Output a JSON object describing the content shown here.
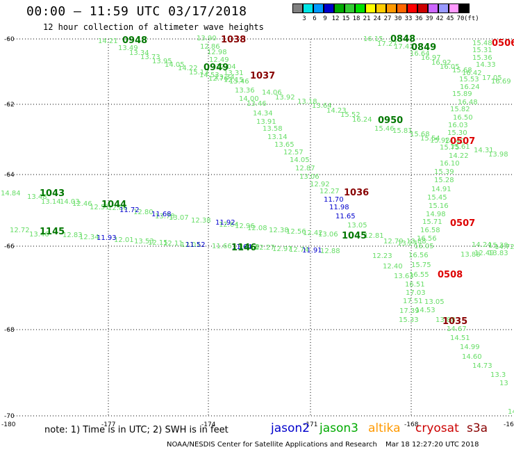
{
  "header": {
    "title": "00:00 – 11:59 UTC 03/17/2018",
    "subtitle": "12 hour collection of altimeter wave heights"
  },
  "color_scale": {
    "labels": [
      "3",
      "6",
      "9",
      "12",
      "15",
      "18",
      "21",
      "24",
      "27",
      "30",
      "33",
      "36",
      "39",
      "42",
      "45",
      "70",
      "(ft)"
    ],
    "colors": [
      "#808080",
      "#00e5e5",
      "#0099ff",
      "#0000cc",
      "#00aa00",
      "#33cc33",
      "#00e000",
      "#ffff00",
      "#ffcc00",
      "#ff9900",
      "#ff6600",
      "#ff0000",
      "#cc0000",
      "#cc66ff",
      "#9999ff",
      "#ff99ff",
      "#000000"
    ]
  },
  "axes": {
    "lat_labels": [
      "-60",
      "-62",
      "-64",
      "-66",
      "-68",
      "-70"
    ],
    "lon_labels": [
      "-180",
      "-177",
      "-174",
      "-171",
      "-168",
      "-16"
    ]
  },
  "colors": {
    "jason2": "#0000cc",
    "jason3": "#00aa00",
    "altika": "#ff9900",
    "cryosat": "#cc0000",
    "s3a": "#880000",
    "light_green": "#66dd66",
    "green": "#00aa00"
  },
  "footer": {
    "note": "note: 1) Time is in UTC; 2) SWH is in feet",
    "jason2": "jason2",
    "jason3": "jason3",
    "altika": "altika",
    "cryosat": "cryosat",
    "s3a": "s3a",
    "credit": "NOAA/NESDIS Center for Satellite Applications and Research",
    "stamp": "Mar 18 12:27:20 UTC 2018"
  },
  "time_labels": [
    {
      "text": "1038",
      "color": "#880000"
    },
    {
      "text": "1037",
      "color": "#880000"
    },
    {
      "text": "0948",
      "color": "#007700"
    },
    {
      "text": "0949",
      "color": "#007700"
    },
    {
      "text": "0950",
      "color": "#007700"
    },
    {
      "text": "0848",
      "color": "#007700"
    },
    {
      "text": "0849",
      "color": "#007700"
    },
    {
      "text": "0506",
      "color": "#dd0000"
    },
    {
      "text": "0507",
      "color": "#dd0000"
    },
    {
      "text": "0507",
      "color": "#dd0000"
    },
    {
      "text": "0508",
      "color": "#dd0000"
    },
    {
      "text": "1036",
      "color": "#880000"
    },
    {
      "text": "1035",
      "color": "#880000"
    },
    {
      "text": "1043",
      "color": "#007700"
    },
    {
      "text": "1044",
      "color": "#007700"
    },
    {
      "text": "1045",
      "color": "#007700"
    },
    {
      "text": "1145",
      "color": "#007700"
    },
    {
      "text": "1146",
      "color": "#007700"
    }
  ],
  "values": [
    {
      "t": "14.21",
      "c": "l"
    },
    {
      "t": "13.49",
      "c": "l"
    },
    {
      "t": "13.34",
      "c": "l"
    },
    {
      "t": "13.73",
      "c": "l"
    },
    {
      "t": "13.95",
      "c": "l"
    },
    {
      "t": "14.05",
      "c": "l"
    },
    {
      "t": "14.22",
      "c": "l"
    },
    {
      "t": "15.13",
      "c": "l"
    },
    {
      "t": "14.53",
      "c": "l"
    },
    {
      "t": "13.34",
      "c": "l"
    },
    {
      "t": "15.46",
      "c": "l"
    },
    {
      "t": "14.06",
      "c": "l"
    },
    {
      "t": "13.92",
      "c": "l"
    },
    {
      "t": "13.18",
      "c": "l"
    },
    {
      "t": "13.64",
      "c": "l"
    },
    {
      "t": "14.23",
      "c": "l"
    },
    {
      "t": "15.52",
      "c": "l"
    },
    {
      "t": "16.24",
      "c": "l"
    },
    {
      "t": "15.46",
      "c": "l"
    },
    {
      "t": "15.81",
      "c": "l"
    },
    {
      "t": "15.68",
      "c": "l"
    },
    {
      "t": "15.54",
      "c": "l"
    },
    {
      "t": "15.92",
      "c": "l"
    },
    {
      "t": "15.61",
      "c": "l"
    },
    {
      "t": "14.31",
      "c": "l"
    },
    {
      "t": "13.98",
      "c": "l"
    },
    {
      "t": "13.90",
      "c": "l"
    },
    {
      "t": "12.86",
      "c": "l"
    },
    {
      "t": "12.98",
      "c": "l"
    },
    {
      "t": "12.49",
      "c": "l"
    },
    {
      "t": "12.04",
      "c": "l"
    },
    {
      "t": "13.31",
      "c": "l"
    },
    {
      "t": "12.76",
      "c": "l"
    },
    {
      "t": "12.15",
      "c": "l"
    },
    {
      "t": "13.36",
      "c": "l"
    },
    {
      "t": "14.00",
      "c": "l"
    },
    {
      "t": "13.46",
      "c": "l"
    },
    {
      "t": "14.34",
      "c": "l"
    },
    {
      "t": "13.91",
      "c": "l"
    },
    {
      "t": "13.58",
      "c": "l"
    },
    {
      "t": "13.14",
      "c": "l"
    },
    {
      "t": "13.65",
      "c": "l"
    },
    {
      "t": "12.57",
      "c": "l"
    },
    {
      "t": "14.05",
      "c": "l"
    },
    {
      "t": "12.87",
      "c": "l"
    },
    {
      "t": "13.06",
      "c": "l"
    },
    {
      "t": "12.92",
      "c": "l"
    },
    {
      "t": "12.27",
      "c": "l"
    },
    {
      "t": "16.15",
      "c": "l"
    },
    {
      "t": "17.27",
      "c": "l"
    },
    {
      "t": "17.43",
      "c": "l"
    },
    {
      "t": "16.64",
      "c": "l"
    },
    {
      "t": "16.97",
      "c": "l"
    },
    {
      "t": "16.92",
      "c": "l"
    },
    {
      "t": "16.05",
      "c": "l"
    },
    {
      "t": "15.48",
      "c": "l"
    },
    {
      "t": "15.31",
      "c": "l"
    },
    {
      "t": "15.36",
      "c": "l"
    },
    {
      "t": "14.33",
      "c": "l"
    },
    {
      "t": "15.68",
      "c": "l"
    },
    {
      "t": "16.42",
      "c": "l"
    },
    {
      "t": "15.53",
      "c": "l"
    },
    {
      "t": "17.05",
      "c": "l"
    },
    {
      "t": "16.69",
      "c": "l"
    },
    {
      "t": "16.24",
      "c": "l"
    },
    {
      "t": "15.89",
      "c": "l"
    },
    {
      "t": "16.48",
      "c": "l"
    },
    {
      "t": "15.82",
      "c": "l"
    },
    {
      "t": "16.50",
      "c": "l"
    },
    {
      "t": "16.03",
      "c": "l"
    },
    {
      "t": "15.30",
      "c": "l"
    },
    {
      "t": "14.40",
      "c": "l"
    },
    {
      "t": "15.75",
      "c": "l"
    },
    {
      "t": "14.22",
      "c": "l"
    },
    {
      "t": "16.10",
      "c": "l"
    },
    {
      "t": "15.39",
      "c": "l"
    },
    {
      "t": "15.28",
      "c": "l"
    },
    {
      "t": "14.91",
      "c": "l"
    },
    {
      "t": "15.45",
      "c": "l"
    },
    {
      "t": "15.16",
      "c": "l"
    },
    {
      "t": "14.98",
      "c": "l"
    },
    {
      "t": "15.71",
      "c": "l"
    },
    {
      "t": "16.58",
      "c": "l"
    },
    {
      "t": "16.56",
      "c": "l"
    },
    {
      "t": "16.05",
      "c": "l"
    },
    {
      "t": "16.56",
      "c": "l"
    },
    {
      "t": "15.75",
      "c": "l"
    },
    {
      "t": "16.55",
      "c": "l"
    },
    {
      "t": "16.51",
      "c": "l"
    },
    {
      "t": "17.03",
      "c": "l"
    },
    {
      "t": "17.51",
      "c": "l"
    },
    {
      "t": "17.39",
      "c": "l"
    },
    {
      "t": "15.33",
      "c": "l"
    },
    {
      "t": "14.24",
      "c": "l"
    },
    {
      "t": "15.38",
      "c": "l"
    },
    {
      "t": "14.72",
      "c": "l"
    },
    {
      "t": "13.83",
      "c": "l"
    },
    {
      "t": "13.88",
      "c": "l"
    },
    {
      "t": "12.49",
      "c": "l"
    },
    {
      "t": "13.05",
      "c": "l"
    },
    {
      "t": "12.81",
      "c": "l"
    },
    {
      "t": "12.79",
      "c": "l"
    },
    {
      "t": "13.27",
      "c": "l"
    },
    {
      "t": "13.88",
      "c": "l"
    },
    {
      "t": "12.23",
      "c": "l"
    },
    {
      "t": "12.40",
      "c": "l"
    },
    {
      "t": "13.63",
      "c": "l"
    },
    {
      "t": "13.05",
      "c": "l"
    },
    {
      "t": "14.53",
      "c": "l"
    },
    {
      "t": "13.88",
      "c": "l"
    },
    {
      "t": "14.67",
      "c": "l"
    },
    {
      "t": "14.51",
      "c": "l"
    },
    {
      "t": "14.99",
      "c": "l"
    },
    {
      "t": "14.60",
      "c": "l"
    },
    {
      "t": "14.73",
      "c": "l"
    },
    {
      "t": "13.3",
      "c": "l"
    },
    {
      "t": "13",
      "c": "l"
    },
    {
      "t": "14.31",
      "c": "l"
    },
    {
      "t": "14.84",
      "c": "l"
    },
    {
      "t": "13.48",
      "c": "l"
    },
    {
      "t": "13.14",
      "c": "l"
    },
    {
      "t": "14.03",
      "c": "l"
    },
    {
      "t": "12.46",
      "c": "l"
    },
    {
      "t": "12.51",
      "c": "l"
    },
    {
      "t": "12.86",
      "c": "l"
    },
    {
      "t": "12.80",
      "c": "l"
    },
    {
      "t": "13.78",
      "c": "l"
    },
    {
      "t": "13.07",
      "c": "l"
    },
    {
      "t": "12.38",
      "c": "l"
    },
    {
      "t": "12.64",
      "c": "l"
    },
    {
      "t": "12.96",
      "c": "l"
    },
    {
      "t": "12.08",
      "c": "l"
    },
    {
      "t": "12.38",
      "c": "l"
    },
    {
      "t": "12.56",
      "c": "l"
    },
    {
      "t": "12.42",
      "c": "l"
    },
    {
      "t": "13.06",
      "c": "l"
    },
    {
      "t": "12.72",
      "c": "l"
    },
    {
      "t": "13.46",
      "c": "l"
    },
    {
      "t": "12.83",
      "c": "l"
    },
    {
      "t": "12.34",
      "c": "l"
    },
    {
      "t": "12.01",
      "c": "l"
    },
    {
      "t": "13.53",
      "c": "l"
    },
    {
      "t": "12.15",
      "c": "l"
    },
    {
      "t": "12.11",
      "c": "l"
    },
    {
      "t": "12.01",
      "c": "l"
    },
    {
      "t": "11.66",
      "c": "l"
    },
    {
      "t": "12.68",
      "c": "l"
    },
    {
      "t": "12.27",
      "c": "l"
    },
    {
      "t": "12.97",
      "c": "l"
    },
    {
      "t": "12.74",
      "c": "l"
    },
    {
      "t": "12.88",
      "c": "l"
    },
    {
      "t": "11.72",
      "c": "b"
    },
    {
      "t": "11.68",
      "c": "b"
    },
    {
      "t": "11.92",
      "c": "b"
    },
    {
      "t": "11.93",
      "c": "b"
    },
    {
      "t": "11.52",
      "c": "b"
    },
    {
      "t": "11.64",
      "c": "b"
    },
    {
      "t": "11.91",
      "c": "b"
    },
    {
      "t": "11.70",
      "c": "b"
    },
    {
      "t": "11.98",
      "c": "b"
    },
    {
      "t": "11.65",
      "c": "b"
    }
  ]
}
